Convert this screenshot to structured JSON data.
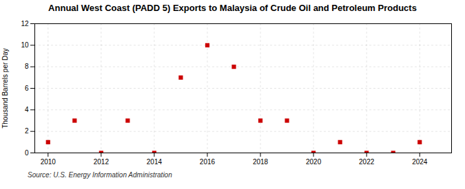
{
  "chart_data": {
    "type": "scatter",
    "title": "Annual West Coast (PADD 5) Exports to Malaysia of Crude Oil and Petroleum Products",
    "ylabel": "Thousand Barrels per Day",
    "annotation": "Source: U.S. Energy Information Administration",
    "x": [
      2010,
      2011,
      2012,
      2013,
      2014,
      2015,
      2016,
      2017,
      2018,
      2019,
      2020,
      2021,
      2022,
      2023,
      2024
    ],
    "values": [
      1.0,
      3.0,
      0.0,
      3.0,
      0.0,
      7.0,
      10.0,
      8.0,
      3.0,
      3.0,
      0.0,
      1.0,
      0.0,
      0.0,
      1.0
    ],
    "color": "#cc0000",
    "marker": "square",
    "xlim": [
      2009.5,
      2025.2
    ],
    "ylim": [
      0,
      12
    ],
    "xticks": [
      2010,
      2012,
      2014,
      2016,
      2018,
      2020,
      2022,
      2024
    ],
    "yticks": [
      0,
      2,
      4,
      6,
      8,
      10,
      12
    ],
    "grid": true
  }
}
